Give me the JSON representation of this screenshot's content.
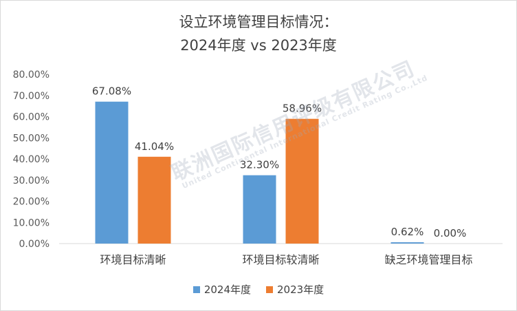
{
  "chart_data": {
    "type": "bar",
    "title_line1": "设立环境管理目标情况：",
    "title_line2": "2024年度 vs 2023年度",
    "categories": [
      "环境目标清晰",
      "环境目标较清晰",
      "缺乏环境管理目标"
    ],
    "series": [
      {
        "name": "2024年度",
        "color": "#5b9bd5",
        "values": [
          67.08,
          32.3,
          0.62
        ],
        "labels": [
          "67.08%",
          "32.30%",
          "0.62%"
        ]
      },
      {
        "name": "2023年度",
        "color": "#ed7d31",
        "values": [
          41.04,
          58.96,
          0.0
        ],
        "labels": [
          "41.04%",
          "58.96%",
          "0.00%"
        ]
      }
    ],
    "ylim": [
      0,
      80
    ],
    "yticks": [
      "0.00%",
      "10.00%",
      "20.00%",
      "30.00%",
      "40.00%",
      "50.00%",
      "60.00%",
      "70.00%",
      "80.00%"
    ],
    "grid": false,
    "legend_position": "bottom"
  },
  "watermark": {
    "text": "联洲国际信用评级有限公司",
    "subtext": "United Continental International Credit Rating Co.,Ltd"
  }
}
